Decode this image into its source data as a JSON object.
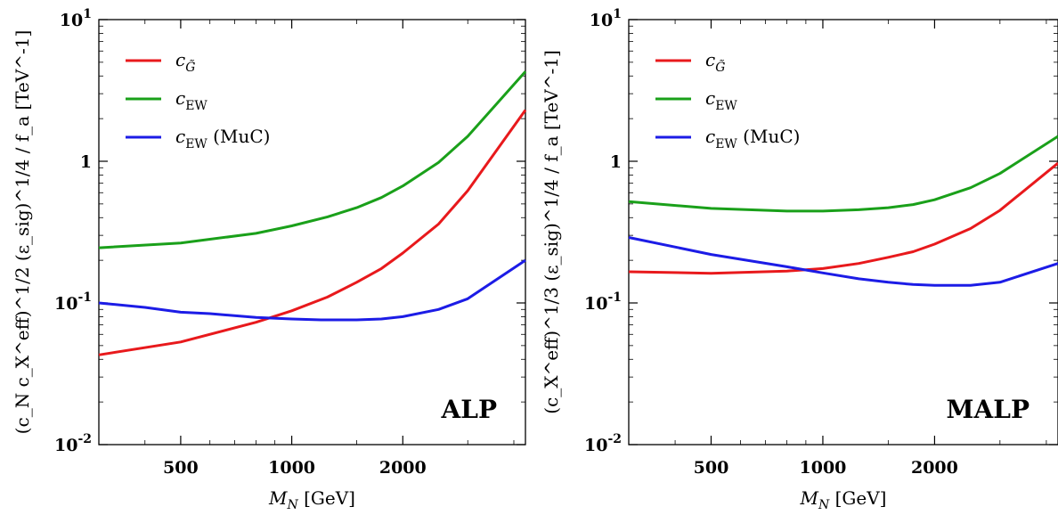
{
  "chart_data": [
    {
      "type": "line",
      "panel_label": "ALP",
      "xlabel": "M_N [GeV]",
      "ylabel": "(c_N c_X^eff)^1/2 (ε_sig)^1/4 / f_a [TeV^-1]",
      "x_scale": "log",
      "y_scale": "log",
      "xlim": [
        300,
        4300
      ],
      "ylim": [
        0.01,
        10
      ],
      "x_ticks": [
        {
          "value": 500,
          "label": "500"
        },
        {
          "value": 1000,
          "label": "1000"
        },
        {
          "value": 2000,
          "label": "2000"
        }
      ],
      "y_ticks": [
        {
          "value": 0.01,
          "label": "10^-2"
        },
        {
          "value": 0.1,
          "label": "10^-1"
        },
        {
          "value": 1,
          "label": "1"
        },
        {
          "value": 10,
          "label": "10^1"
        }
      ],
      "legend_position": "top-left",
      "series": [
        {
          "name": "c_G̃",
          "color": "#e8191c",
          "x": [
            300,
            500,
            800,
            1000,
            1250,
            1500,
            1750,
            2000,
            2500,
            3000,
            4300
          ],
          "y": [
            0.043,
            0.053,
            0.073,
            0.088,
            0.11,
            0.14,
            0.175,
            0.225,
            0.36,
            0.62,
            2.3
          ]
        },
        {
          "name": "c_EW",
          "color": "#1aa01a",
          "x": [
            300,
            500,
            800,
            1000,
            1250,
            1500,
            1750,
            2000,
            2500,
            3000,
            4300
          ],
          "y": [
            0.245,
            0.265,
            0.31,
            0.35,
            0.405,
            0.47,
            0.555,
            0.67,
            0.98,
            1.5,
            4.3
          ]
        },
        {
          "name": "c_EW (MuC)",
          "color": "#1c1ce6",
          "x": [
            300,
            400,
            500,
            600,
            800,
            1000,
            1200,
            1500,
            1750,
            2000,
            2500,
            3000,
            4300
          ],
          "y": [
            0.1,
            0.093,
            0.086,
            0.084,
            0.079,
            0.077,
            0.076,
            0.076,
            0.077,
            0.08,
            0.09,
            0.107,
            0.2
          ]
        }
      ]
    },
    {
      "type": "line",
      "panel_label": "MALP",
      "xlabel": "M_N [GeV]",
      "ylabel": "(c_X^eff)^1/3 (ε_sig)^1/4 / f_a [TeV^-1]",
      "x_scale": "log",
      "y_scale": "log",
      "xlim": [
        300,
        4300
      ],
      "ylim": [
        0.01,
        10
      ],
      "x_ticks": [
        {
          "value": 500,
          "label": "500"
        },
        {
          "value": 1000,
          "label": "1000"
        },
        {
          "value": 2000,
          "label": "2000"
        }
      ],
      "y_ticks": [
        {
          "value": 0.01,
          "label": "10^-2"
        },
        {
          "value": 0.1,
          "label": "10^-1"
        },
        {
          "value": 1,
          "label": "1"
        },
        {
          "value": 10,
          "label": "10^1"
        }
      ],
      "legend_position": "top-left",
      "series": [
        {
          "name": "c_G̃",
          "color": "#e8191c",
          "x": [
            300,
            500,
            800,
            1000,
            1250,
            1500,
            1750,
            2000,
            2500,
            3000,
            4300
          ],
          "y": [
            0.166,
            0.162,
            0.168,
            0.175,
            0.19,
            0.21,
            0.23,
            0.26,
            0.335,
            0.45,
            0.97
          ]
        },
        {
          "name": "c_EW",
          "color": "#1aa01a",
          "x": [
            300,
            500,
            800,
            1000,
            1250,
            1500,
            1750,
            2000,
            2500,
            3000,
            4300
          ],
          "y": [
            0.52,
            0.465,
            0.445,
            0.445,
            0.455,
            0.47,
            0.495,
            0.535,
            0.65,
            0.82,
            1.5
          ]
        },
        {
          "name": "c_EW (MuC)",
          "color": "#1c1ce6",
          "x": [
            300,
            500,
            800,
            1000,
            1250,
            1500,
            1750,
            2000,
            2500,
            3000,
            4300
          ],
          "y": [
            0.29,
            0.22,
            0.18,
            0.163,
            0.148,
            0.14,
            0.135,
            0.133,
            0.133,
            0.14,
            0.19
          ]
        }
      ]
    }
  ]
}
